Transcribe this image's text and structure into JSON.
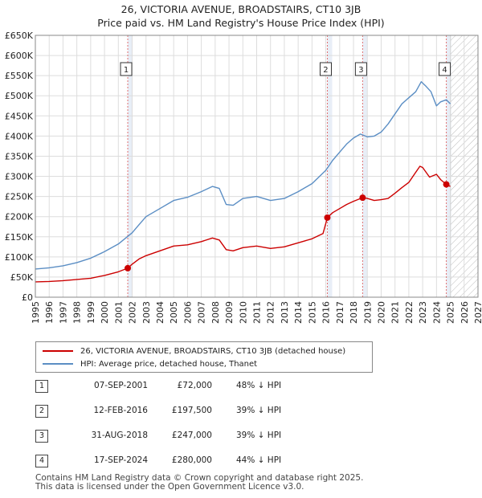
{
  "title_line1": "26, VICTORIA AVENUE, BROADSTAIRS, CT10 3JB",
  "title_line2": "Price paid vs. HM Land Registry's House Price Index (HPI)",
  "colors": {
    "property": "#cc0000",
    "hpi": "#5b8ec4",
    "marker_line": "#e07070",
    "grid": "#dddddd",
    "shade": "#e8eef7"
  },
  "chart_data": {
    "type": "line",
    "title": "26, VICTORIA AVENUE, BROADSTAIRS, CT10 3JB — Price paid vs. HM Land Registry's House Price Index (HPI)",
    "xlabel": "",
    "ylabel": "",
    "xlim": [
      1995,
      2027
    ],
    "ylim": [
      0,
      650000
    ],
    "grid": true,
    "legend_position": "bottom",
    "forecast_start": 2025.0,
    "y_ticks": [
      0,
      50000,
      100000,
      150000,
      200000,
      250000,
      300000,
      350000,
      400000,
      450000,
      500000,
      550000,
      600000,
      650000
    ],
    "y_tick_labels": [
      "£0",
      "£50K",
      "£100K",
      "£150K",
      "£200K",
      "£250K",
      "£300K",
      "£350K",
      "£400K",
      "£450K",
      "£500K",
      "£550K",
      "£600K",
      "£650K"
    ],
    "x_ticks": [
      1995,
      1996,
      1997,
      1998,
      1999,
      2000,
      2001,
      2002,
      2003,
      2004,
      2005,
      2006,
      2007,
      2008,
      2009,
      2010,
      2011,
      2012,
      2013,
      2014,
      2015,
      2016,
      2017,
      2018,
      2019,
      2020,
      2021,
      2022,
      2023,
      2024,
      2025,
      2026,
      2027
    ],
    "x_tick_labels": [
      "1995",
      "1996",
      "1997",
      "1998",
      "1999",
      "2000",
      "2001",
      "2002",
      "2003",
      "2004",
      "2005",
      "2006",
      "2007",
      "2008",
      "2009",
      "2010",
      "2011",
      "2012",
      "2013",
      "2014",
      "2015",
      "2016",
      "2017",
      "2018",
      "2019",
      "2020",
      "2021",
      "2022",
      "2023",
      "2024",
      "2025",
      "2026",
      "2027"
    ],
    "series": [
      {
        "name": "26, VICTORIA AVENUE, BROADSTAIRS, CT10 3JB (detached house)",
        "x": [
          1995.0,
          1996.0,
          1997.0,
          1998.0,
          1999.0,
          2000.0,
          2001.0,
          2001.68,
          2002.0,
          2002.5,
          2003.0,
          2004.0,
          2005.0,
          2006.0,
          2007.0,
          2007.8,
          2008.3,
          2008.8,
          2009.3,
          2010.0,
          2011.0,
          2012.0,
          2013.0,
          2013.8,
          2014.5,
          2015.0,
          2015.8,
          2016.11,
          2016.5,
          2017.0,
          2017.5,
          2018.0,
          2018.66,
          2019.0,
          2019.5,
          2020.0,
          2020.5,
          2021.0,
          2021.5,
          2022.0,
          2022.5,
          2022.8,
          2023.0,
          2023.5,
          2024.0,
          2024.3,
          2024.71,
          2025.0
        ],
        "values": [
          38000,
          39000,
          41000,
          44000,
          47000,
          54000,
          63000,
          72000,
          82000,
          95000,
          103000,
          115000,
          127000,
          130000,
          138000,
          147000,
          142000,
          118000,
          115000,
          123000,
          127000,
          121000,
          125000,
          133000,
          140000,
          145000,
          158000,
          197500,
          210000,
          220000,
          230000,
          238000,
          247000,
          245000,
          240000,
          242000,
          245000,
          258000,
          272000,
          285000,
          310000,
          325000,
          322000,
          298000,
          305000,
          292000,
          280000,
          275000
        ]
      },
      {
        "name": "HPI: Average price, detached house, Thanet",
        "x": [
          1995.0,
          1996.0,
          1997.0,
          1998.0,
          1999.0,
          2000.0,
          2001.0,
          2002.0,
          2002.5,
          2003.0,
          2004.0,
          2005.0,
          2006.0,
          2007.0,
          2007.8,
          2008.3,
          2008.8,
          2009.3,
          2010.0,
          2011.0,
          2012.0,
          2013.0,
          2014.0,
          2015.0,
          2016.0,
          2016.5,
          2017.0,
          2017.5,
          2018.0,
          2018.5,
          2019.0,
          2019.5,
          2020.0,
          2020.5,
          2021.0,
          2021.5,
          2022.0,
          2022.5,
          2022.9,
          2023.2,
          2023.6,
          2024.0,
          2024.3,
          2024.71,
          2025.0
        ],
        "values": [
          70000,
          73000,
          78000,
          86000,
          97000,
          113000,
          132000,
          160000,
          180000,
          200000,
          220000,
          240000,
          248000,
          262000,
          275000,
          270000,
          230000,
          228000,
          245000,
          250000,
          240000,
          245000,
          262000,
          282000,
          315000,
          340000,
          360000,
          380000,
          395000,
          405000,
          398000,
          400000,
          410000,
          430000,
          455000,
          480000,
          495000,
          510000,
          535000,
          525000,
          510000,
          475000,
          485000,
          490000,
          480000
        ]
      }
    ],
    "sales": [
      {
        "label": "1",
        "x": 2001.68,
        "value": 72000
      },
      {
        "label": "2",
        "x": 2016.11,
        "value": 197500
      },
      {
        "label": "3",
        "x": 2018.66,
        "value": 247000
      },
      {
        "label": "4",
        "x": 2024.71,
        "value": 280000
      }
    ]
  },
  "legend": {
    "property_label": "26, VICTORIA AVENUE, BROADSTAIRS, CT10 3JB (detached house)",
    "hpi_label": "HPI: Average price, detached house, Thanet"
  },
  "sales_table": [
    {
      "label": "1",
      "date": "07-SEP-2001",
      "price": "£72,000",
      "hpi": "48% ↓ HPI"
    },
    {
      "label": "2",
      "date": "12-FEB-2016",
      "price": "£197,500",
      "hpi": "39% ↓ HPI"
    },
    {
      "label": "3",
      "date": "31-AUG-2018",
      "price": "£247,000",
      "hpi": "39% ↓ HPI"
    },
    {
      "label": "4",
      "date": "17-SEP-2024",
      "price": "£280,000",
      "hpi": "44% ↓ HPI"
    }
  ],
  "footer_line1": "Contains HM Land Registry data © Crown copyright and database right 2025.",
  "footer_line2": "This data is licensed under the Open Government Licence v3.0."
}
